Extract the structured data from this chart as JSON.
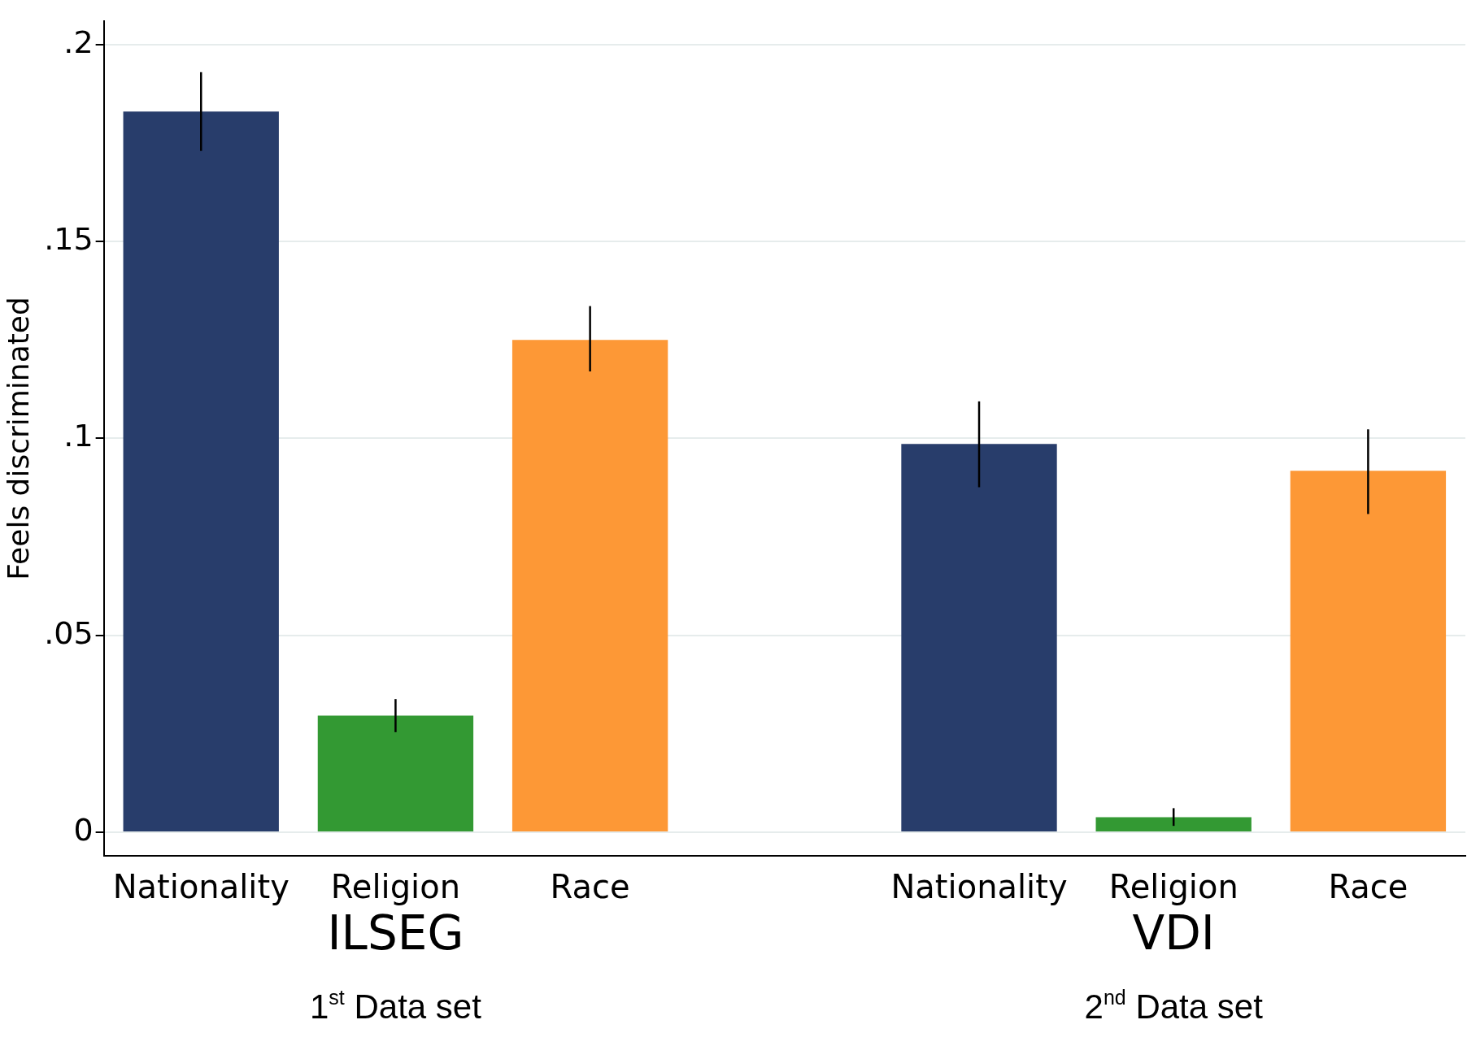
{
  "chart_data": {
    "type": "bar",
    "ylabel": "Feels discriminated",
    "categories": [
      "Nationality",
      "Religion",
      "Race",
      null,
      "Nationality",
      "Religion",
      "Race"
    ],
    "values": [
      0.183,
      0.0296,
      0.125,
      null,
      0.0986,
      0.0038,
      0.0918
    ],
    "colors": [
      "#283d6b",
      "#339933",
      "#fd9836",
      null,
      "#283d6b",
      "#339933",
      "#fd9836"
    ],
    "errors": [
      [
        0.173,
        0.193
      ],
      [
        0.0254,
        0.0338
      ],
      [
        0.117,
        0.1336
      ],
      null,
      [
        0.0876,
        0.1094
      ],
      [
        0.0016,
        0.0061
      ],
      [
        0.0808,
        0.1023
      ]
    ],
    "ylim": [
      -0.006,
      0.206
    ],
    "yticks": [
      {
        "value": 0,
        "label": "0"
      },
      {
        "value": 0.05,
        "label": ".05"
      },
      {
        "value": 0.1,
        "label": ".1"
      },
      {
        "value": 0.15,
        "label": ".15"
      },
      {
        "value": 0.2,
        "label": ".2"
      }
    ],
    "grid": "y",
    "annotations": [
      "ILSEG",
      "VDI",
      "1$^{st}$ Data set",
      "2$^{nd}$ Data set"
    ]
  }
}
